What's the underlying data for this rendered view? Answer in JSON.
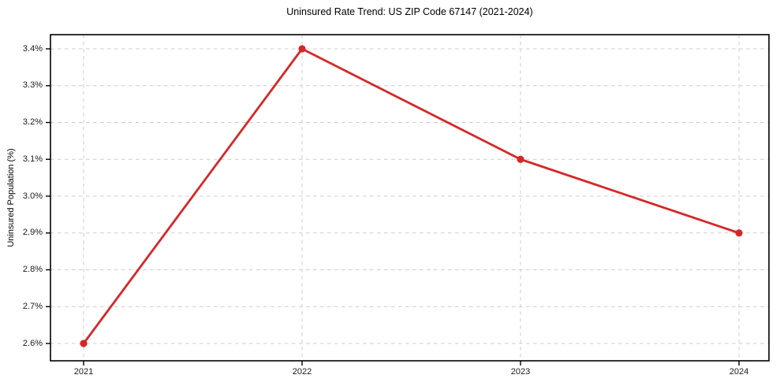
{
  "chart_data": {
    "type": "line",
    "title": "Uninsured Rate Trend: US ZIP Code 67147 (2021-2024)",
    "xlabel": "",
    "ylabel": "Uninsured Population (%)",
    "categories": [
      "2021",
      "2022",
      "2023",
      "2024"
    ],
    "values": [
      2.6,
      3.4,
      3.1,
      2.9
    ],
    "yticks": [
      2.6,
      2.7,
      2.8,
      2.9,
      3.0,
      3.1,
      3.2,
      3.3,
      3.4
    ],
    "ytick_labels": [
      "2.6%",
      "2.7%",
      "2.8%",
      "2.9%",
      "3.0%",
      "3.1%",
      "3.2%",
      "3.3%",
      "3.4%"
    ],
    "ylim": [
      2.553,
      3.439
    ],
    "grid": true,
    "grid_style": "dashed",
    "legend_position": "none",
    "styles": {
      "line_color": "#d62728",
      "marker": "circle",
      "marker_color": "#d62728",
      "grid_color": "#cccccc",
      "axis_color": "#000000",
      "tick_color": "#000000",
      "text_color": "#1a1a1a",
      "background": "#ffffff"
    }
  }
}
